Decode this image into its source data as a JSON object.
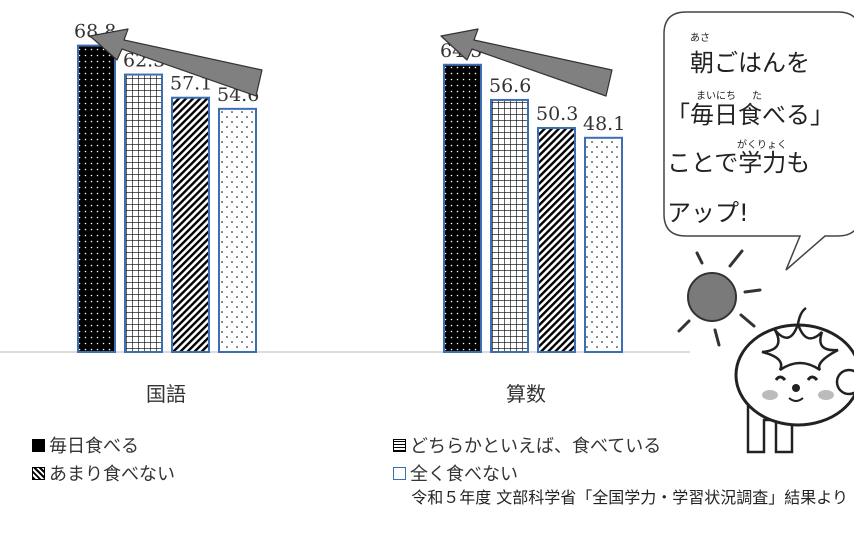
{
  "chart_data": {
    "type": "bar",
    "categories": [
      "国語",
      "算数"
    ],
    "series": [
      {
        "name": "毎日食べる",
        "values": [
          68.8,
          64.5
        ],
        "pattern": "dots-dark"
      },
      {
        "name": "どちらかといえば、食べている",
        "values": [
          62.3,
          56.6
        ],
        "pattern": "grid"
      },
      {
        "name": "あまり食べない",
        "values": [
          57.1,
          50.3
        ],
        "pattern": "diagonal"
      },
      {
        "name": "全く食べない",
        "values": [
          54.6,
          48.1
        ],
        "pattern": "dots-light"
      }
    ],
    "value_labels": [
      [
        "68.8",
        "62.3",
        "57.1",
        "54.6"
      ],
      [
        "64.5",
        "56.6",
        "50.3",
        "48.1"
      ]
    ],
    "ylim": [
      0,
      75
    ],
    "grid": false,
    "legend_position": "bottom"
  },
  "bubble": {
    "lines": [
      "朝ごはんを",
      "「毎日食べる」",
      "ことで学力も",
      "アップ!"
    ],
    "ruby": [
      "あさ",
      "まいにち",
      "た",
      "がくりょく"
    ]
  },
  "source": "令和５年度 文部科学省「全国学力・学習状況調査」結果より",
  "colors": {
    "bar_border": "#3c6eb4",
    "arrow": "#808080",
    "sun": "#7a7a7a"
  },
  "icons": [
    "sun-icon",
    "tomato-character-icon"
  ]
}
